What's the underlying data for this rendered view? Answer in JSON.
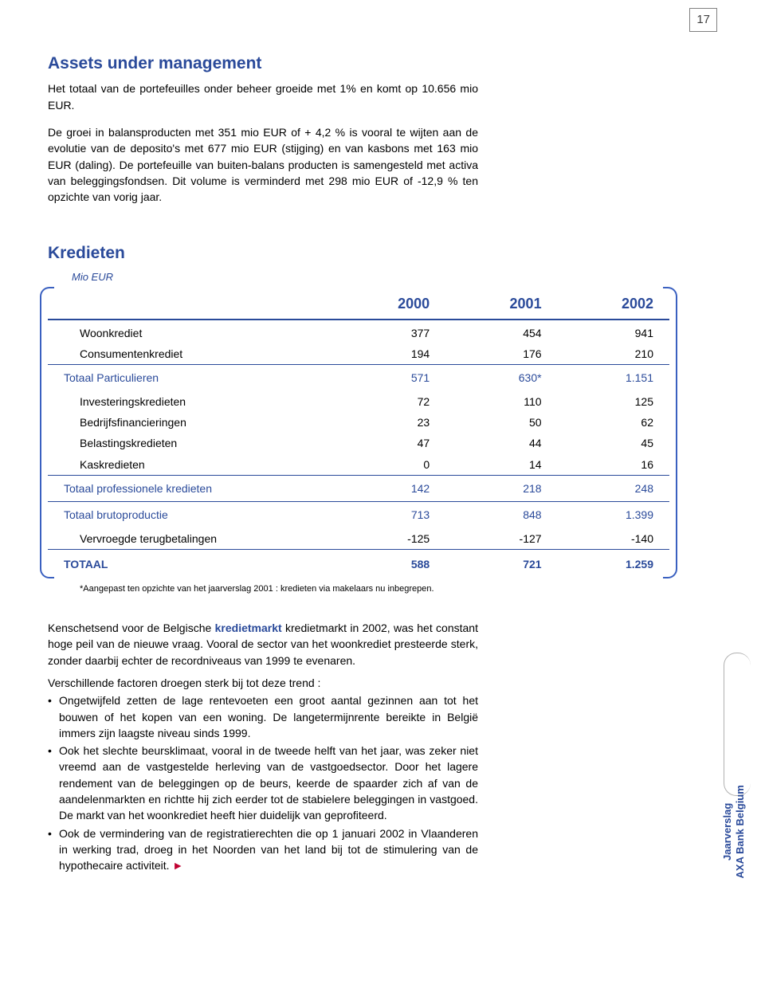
{
  "page_number": "17",
  "section1": {
    "title": "Assets under management",
    "p1": "Het totaal van de portefeuilles onder beheer groeide met 1% en komt op 10.656 mio EUR.",
    "p2": "De groei in balansproducten met 351 mio EUR of + 4,2 % is vooral te wijten aan de evolutie van de deposito's met 677 mio EUR (stijging) en van kasbons met 163 mio EUR (daling). De portefeuille van buiten-balans producten is samengesteld met activa van beleggingsfondsen. Dit volume is verminderd met 298 mio EUR of -12,9 % ten opzichte van vorig jaar."
  },
  "section2_title": "Kredieten",
  "table": {
    "unit_label": "Mio EUR",
    "columns": [
      "",
      "2000",
      "2001",
      "2002"
    ],
    "rows": [
      {
        "indent": true,
        "cells": [
          "Woonkrediet",
          "377",
          "454",
          "941"
        ]
      },
      {
        "indent": true,
        "cells": [
          "Consumentenkrediet",
          "194",
          "176",
          "210"
        ]
      },
      {
        "section": true,
        "cells": [
          "Totaal Particulieren",
          "571",
          "630*",
          "1.151"
        ]
      },
      {
        "indent": true,
        "cells": [
          "Investeringskredieten",
          "72",
          "110",
          "125"
        ]
      },
      {
        "indent": true,
        "cells": [
          "Bedrijfsfinancieringen",
          "23",
          "50",
          "62"
        ]
      },
      {
        "indent": true,
        "cells": [
          "Belastingskredieten",
          "47",
          "44",
          "45"
        ]
      },
      {
        "indent": true,
        "cells": [
          "Kaskredieten",
          "0",
          "14",
          "16"
        ]
      },
      {
        "section": true,
        "cells": [
          "Totaal professionele kredieten",
          "142",
          "218",
          "248"
        ]
      },
      {
        "section": true,
        "cells": [
          "Totaal brutoproductie",
          "713",
          "848",
          "1.399"
        ]
      },
      {
        "indent": true,
        "cells": [
          "Vervroegde terugbetalingen",
          "-125",
          "-127",
          "-140"
        ]
      },
      {
        "total": true,
        "cells": [
          "TOTAAL",
          "588",
          "721",
          "1.259"
        ]
      }
    ],
    "footnote": "*Aangepast ten opzichte van het jaarverslag 2001 : kredieten via makelaars nu inbegrepen.",
    "colors": {
      "brand": "#2a4a9a",
      "bracket": "#3a60c0",
      "text": "#000000",
      "page_border": "#808080"
    },
    "col_widths_pct": [
      46,
      18,
      18,
      18
    ],
    "header_fontsize_pt": 14,
    "body_fontsize_pt": 11
  },
  "after_table": {
    "p1_pre": "Kenschetsend voor de Belgische ",
    "p1_hl": "kredietmarkt",
    "p1_post": " kredietmarkt in 2002, was het constant hoge peil van de nieuwe vraag. Vooral de sector van het woonkrediet presteerde sterk, zonder daarbij echter de recordniveaus van 1999 te evenaren.",
    "lead": "Verschillende factoren droegen sterk bij tot deze trend :",
    "bullets": [
      "Ongetwijfeld zetten de lage rentevoeten een groot aantal gezinnen aan tot het bouwen of het kopen van een woning. De langetermijnrente bereikte in België immers zijn laagste niveau sinds 1999.",
      "Ook het slechte beursklimaat, vooral in de tweede helft van het jaar, was zeker niet vreemd aan de vastgestelde herleving van de vastgoedsector. Door het lagere rendement van de beleggingen op de beurs, keerde de spaarder zich af van de aandelenmarkten en richtte hij zich eerder tot de stabielere beleggingen in vastgoed. De markt van het woonkrediet heeft hier duidelijk van geprofiteerd.",
      "Ook de vermindering van de registratierechten die op 1 januari 2002 in Vlaanderen in werking trad, droeg in het Noorden van het land bij tot de stimulering van de hypothecaire activiteit."
    ],
    "arrow": "►"
  },
  "side_label": {
    "line1": "Jaarverslag",
    "line2": "AXA Bank Belgium"
  }
}
